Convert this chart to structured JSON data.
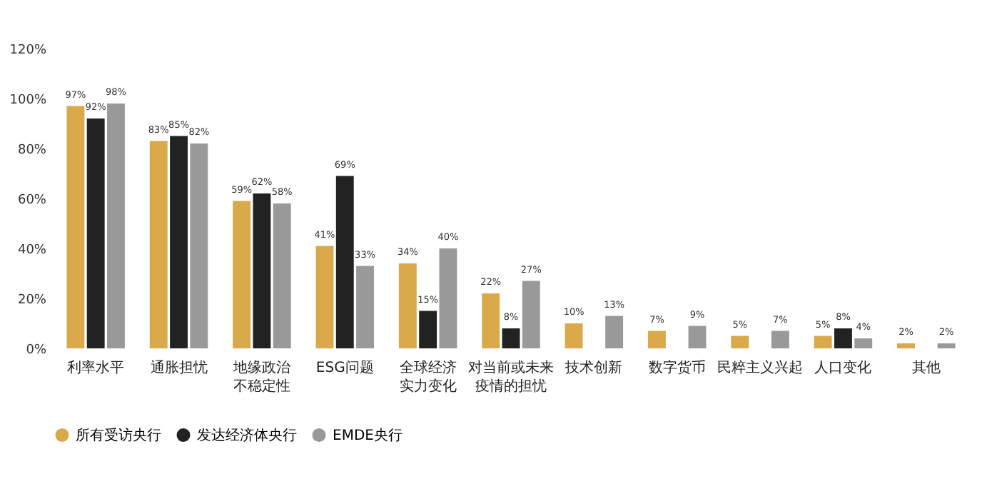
{
  "chart_data": {
    "type": "bar",
    "categories": [
      "利率水平",
      "通胀担忧",
      "地缘政治不稳定性",
      "ESG问题",
      "全球经济实力变化",
      "对当前或未来疫情的担忧",
      "技术创新",
      "数字货币",
      "民粹主义兴起",
      "人口变化",
      "其他"
    ],
    "series": [
      {
        "name": "所有受访央行",
        "color": "#d9a94a",
        "values": [
          97,
          83,
          59,
          41,
          34,
          22,
          10,
          7,
          5,
          5,
          2
        ],
        "value_labels": [
          "97%",
          "83%",
          "59%",
          "41%",
          "34%",
          "22%",
          "10%",
          "7%",
          "5%",
          "5%",
          "2%"
        ]
      },
      {
        "name": "发达经济体央行",
        "color": "#222222",
        "values": [
          92,
          85,
          62,
          69,
          15,
          8,
          0,
          0,
          0,
          8,
          0
        ],
        "value_labels": [
          "92%",
          "85%",
          "62%",
          "69%",
          "15%",
          "8%",
          null,
          null,
          null,
          "8%",
          null
        ]
      },
      {
        "name": "EMDE央行",
        "color": "#999999",
        "values": [
          98,
          82,
          58,
          33,
          40,
          27,
          13,
          9,
          7,
          4,
          2
        ],
        "value_labels": [
          "98%",
          "82%",
          "58%",
          "33%",
          "40%",
          "27%",
          "13%",
          "9%",
          "7%",
          "4%",
          "2%"
        ]
      }
    ],
    "ylim": [
      0,
      120
    ],
    "yticks": [
      {
        "value": 0,
        "label": "0%"
      },
      {
        "value": 20,
        "label": "20%"
      },
      {
        "value": 40,
        "label": "40%"
      },
      {
        "value": 60,
        "label": "60%"
      },
      {
        "value": 80,
        "label": "80%"
      },
      {
        "value": 100,
        "label": "100%"
      },
      {
        "value": 120,
        "label": "120%"
      }
    ],
    "grid": false,
    "legend": "bottom"
  }
}
